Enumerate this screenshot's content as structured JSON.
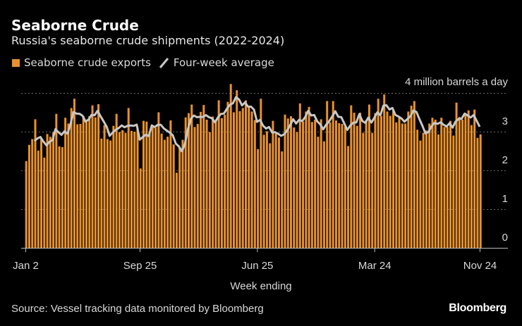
{
  "header": {
    "title": "Seaborne Crude",
    "subtitle": "Russia's seaborne crude shipments (2022-2024)"
  },
  "legend": {
    "bars_label": "Seaborne crude exports",
    "line_label": "Four-week average"
  },
  "footer": {
    "source": "Source: Vessel tracking data monitored by Bloomberg",
    "logo": "Bloomberg"
  },
  "colors": {
    "bars": "#e8912d",
    "line": "#c8c8c8",
    "background": "#000000"
  },
  "chart_data": {
    "type": "bar",
    "title": "Seaborne Crude",
    "subtitle": "Russia's seaborne crude shipments (2022-2024)",
    "xlabel": "Week ending",
    "ylabel": "",
    "y_unit_label": "4 million barrels a day",
    "ylim": [
      0,
      4
    ],
    "y_ticks": [
      "0",
      "1",
      "2",
      "3"
    ],
    "x_ticks": [
      {
        "label": "Jan 2",
        "index": 0
      },
      {
        "label": "Sep 25",
        "index": 38
      },
      {
        "label": "Jun 25",
        "index": 77
      },
      {
        "label": "Mar 24",
        "index": 116
      },
      {
        "label": "Nov 24",
        "index": 151
      }
    ],
    "grid": true,
    "legend_position": "top-left",
    "series": [
      {
        "name": "Seaborne crude exports",
        "type": "bar",
        "values": [
          2.24,
          2.66,
          2.81,
          3.32,
          2.51,
          2.81,
          2.33,
          2.94,
          2.87,
          2.99,
          3.46,
          2.62,
          2.6,
          3.36,
          3.21,
          3.61,
          3.85,
          3.19,
          3.2,
          3.4,
          3.25,
          3.4,
          3.68,
          3.37,
          3.71,
          2.82,
          3.17,
          2.81,
          2.77,
          3.15,
          3.46,
          2.99,
          3.04,
          2.97,
          3.61,
          3.02,
          3.0,
          3.1,
          2.05,
          3.28,
          3.26,
          2.95,
          3.16,
          3.1,
          3.5,
          2.95,
          2.79,
          2.87,
          3.29,
          2.67,
          1.94,
          2.58,
          2.79,
          3.37,
          3.48,
          3.7,
          3.12,
          3.2,
          3.51,
          3.69,
          3.31,
          2.99,
          3.39,
          3.28,
          3.81,
          3.35,
          3.44,
          3.77,
          4.23,
          3.5,
          4.07,
          3.53,
          3.61,
          3.81,
          3.64,
          3.52,
          3.3,
          2.55,
          3.85,
          2.92,
          3.01,
          2.7,
          3.28,
          2.95,
          2.85,
          2.49,
          3.44,
          3.34,
          3.4,
          3.11,
          2.99,
          3.73,
          3.26,
          3.52,
          3.64,
          3.25,
          3.31,
          2.87,
          3.32,
          2.75,
          3.79,
          3.24,
          3.79,
          3.29,
          3.22,
          3.2,
          3.13,
          2.63,
          3.68,
          3.49,
          3.15,
          3.49,
          2.97,
          3.3,
          3.7,
          2.97,
          3.48,
          3.85,
          3.4,
          3.96,
          3.52,
          3.41,
          3.55,
          3.24,
          3.37,
          3.21,
          3.21,
          3.52,
          3.67,
          3.79,
          3.05,
          2.77,
          2.97,
          3.03,
          3.21,
          3.36,
          3.31,
          2.93,
          3.36,
          3.12,
          3.12,
          3.28,
          2.9,
          3.75,
          3.38,
          3.31,
          3.43,
          3.55,
          3.17,
          3.57,
          2.84,
          2.93
        ]
      },
      {
        "name": "Four-week average",
        "type": "line",
        "derived_from": "Seaborne crude exports",
        "window": 4
      }
    ]
  }
}
